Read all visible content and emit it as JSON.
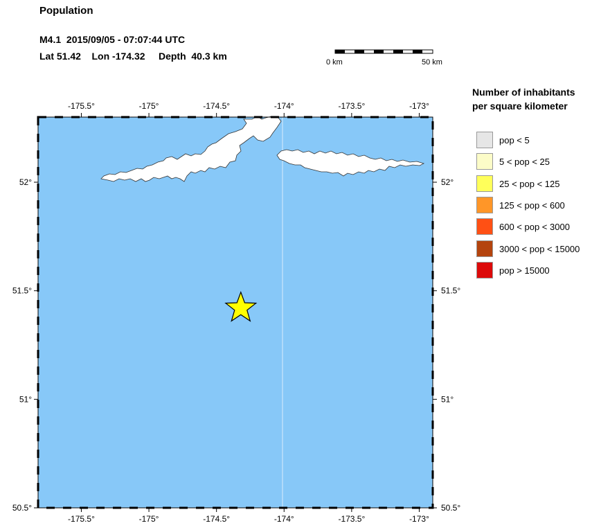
{
  "header": {
    "title": "Population",
    "event_line": "M4.1  2015/09/05 - 07:07:44 UTC",
    "location_line": "Lat 51.42    Lon -174.32     Depth  40.3 km"
  },
  "scale_bar": {
    "start_label": "0 km",
    "end_label": "50 km"
  },
  "map": {
    "lon_range": [
      -175.82,
      -172.9
    ],
    "lat_range": [
      50.5,
      52.3
    ],
    "lon_ticks": [
      {
        "value": -175.5,
        "label": "-175.5°"
      },
      {
        "value": -175.0,
        "label": "-175°"
      },
      {
        "value": -174.5,
        "label": "-174.5°"
      },
      {
        "value": -174.0,
        "label": "-174°"
      },
      {
        "value": -173.5,
        "label": "-173.5°"
      },
      {
        "value": -173.0,
        "label": "-173°"
      }
    ],
    "lat_ticks": [
      {
        "value": 52.0,
        "label": "52°"
      },
      {
        "value": 51.5,
        "label": "51.5°"
      },
      {
        "value": 51.0,
        "label": "51°"
      },
      {
        "value": 50.5,
        "label": "50.5°"
      }
    ],
    "epicenter": {
      "lat": 51.42,
      "lon": -174.32
    },
    "colors": {
      "ocean": "#87c8f8",
      "land": "#ffffff",
      "epicenter": "#ffff00",
      "grid_line": "#d8ecfb"
    }
  },
  "legend": {
    "title_line1": "Number of inhabitants",
    "title_line2": "per square kilometer",
    "items": [
      {
        "label": "pop < 5",
        "color": "#e6e6e6"
      },
      {
        "label": "5 < pop < 25",
        "color": "#fcfcc8"
      },
      {
        "label": "25 < pop < 125",
        "color": "#ffff5a"
      },
      {
        "label": "125 < pop < 600",
        "color": "#ff9628"
      },
      {
        "label": "600 < pop < 3000",
        "color": "#ff5014"
      },
      {
        "label": "3000 < pop < 15000",
        "color": "#b4440e"
      },
      {
        "label": "pop > 15000",
        "color": "#dc0a0a"
      }
    ]
  }
}
